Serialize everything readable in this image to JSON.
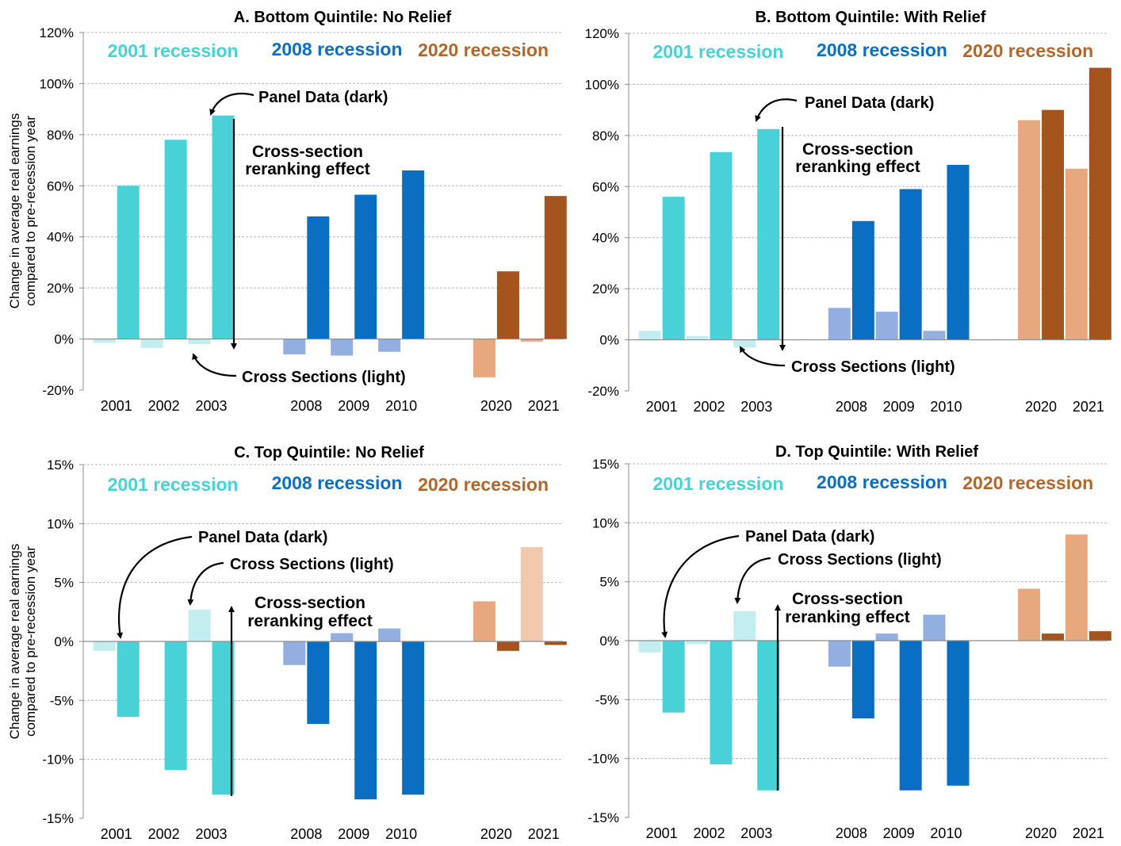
{
  "colors": {
    "c2001_dark": "#48d1d7",
    "c2001_light": "#c3eef0",
    "c2008_dark": "#0a6fc2",
    "c2008_light": "#93aee0",
    "c2020_dark": "#a5541e",
    "c2020_light": "#e8a87e",
    "c2020_lighter": "#f3c9ad",
    "label2001": "#48d1d7",
    "label2008": "#0a6fc2",
    "label2020": "#b4652a"
  },
  "shared": {
    "ylabel_line1": "Change in average real earnings",
    "ylabel_line2": "compared to pre-recession year",
    "recession_labels": [
      "2001 recession",
      "2008 recession",
      "2020 recession"
    ],
    "panel_label": "Panel Data (dark)",
    "cross_label": "Cross Sections (light)",
    "rerank_line1": "Cross-section",
    "rerank_line2": "reranking effect"
  },
  "chart_data": [
    {
      "type": "bar",
      "title": "A. Bottom Quintile: No Relief",
      "categories": [
        "2001",
        "2002",
        "2003",
        "2008",
        "2009",
        "2010",
        "2020",
        "2021"
      ],
      "ylim": [
        -20,
        120
      ],
      "yticks": [
        -20,
        0,
        20,
        40,
        60,
        80,
        100,
        120
      ],
      "series": [
        {
          "name": "Cross Sections (light)",
          "values": [
            -1.5,
            -3.5,
            -2,
            -6,
            -6.5,
            -5,
            -15,
            -1
          ]
        },
        {
          "name": "Panel Data (dark)",
          "values": [
            60,
            78,
            87.5,
            48,
            56.5,
            66,
            26.5,
            56
          ]
        }
      ]
    },
    {
      "type": "bar",
      "title": "B. Bottom Quintile: With Relief",
      "categories": [
        "2001",
        "2002",
        "2003",
        "2008",
        "2009",
        "2010",
        "2020",
        "2021"
      ],
      "ylim": [
        -20,
        120
      ],
      "yticks": [
        -20,
        0,
        20,
        40,
        60,
        80,
        100,
        120
      ],
      "series": [
        {
          "name": "Cross Sections (light)",
          "values": [
            3.5,
            1.5,
            -3,
            12.5,
            11,
            3.5,
            86,
            67
          ]
        },
        {
          "name": "Panel Data (dark)",
          "values": [
            56,
            73.5,
            82.5,
            46.5,
            59,
            68.5,
            90,
            106.5
          ]
        }
      ]
    },
    {
      "type": "bar",
      "title": "C. Top Quintile: No Relief",
      "categories": [
        "2001",
        "2002",
        "2003",
        "2008",
        "2009",
        "2010",
        "2020",
        "2021"
      ],
      "ylim": [
        -15,
        15
      ],
      "yticks": [
        -15,
        -10,
        -5,
        0,
        5,
        10,
        15
      ],
      "series": [
        {
          "name": "Cross Sections (light)",
          "values": [
            -0.8,
            0,
            2.7,
            -2,
            0.7,
            1.1,
            3.4,
            8
          ]
        },
        {
          "name": "Panel Data (dark)",
          "values": [
            -6.4,
            -10.9,
            -13,
            -7,
            -13.4,
            -13,
            -0.8,
            -0.3
          ]
        }
      ]
    },
    {
      "type": "bar",
      "title": "D. Top Quintile: With Relief",
      "categories": [
        "2001",
        "2002",
        "2003",
        "2008",
        "2009",
        "2010",
        "2020",
        "2021"
      ],
      "ylim": [
        -15,
        15
      ],
      "yticks": [
        -15,
        -10,
        -5,
        0,
        5,
        10,
        15
      ],
      "series": [
        {
          "name": "Cross Sections (light)",
          "values": [
            -1,
            -0.3,
            2.5,
            -2.2,
            0.6,
            2.2,
            4.4,
            9
          ]
        },
        {
          "name": "Panel Data (dark)",
          "values": [
            -6.1,
            -10.5,
            -12.7,
            -6.6,
            -12.7,
            -12.3,
            0.6,
            0.8
          ]
        }
      ]
    }
  ]
}
